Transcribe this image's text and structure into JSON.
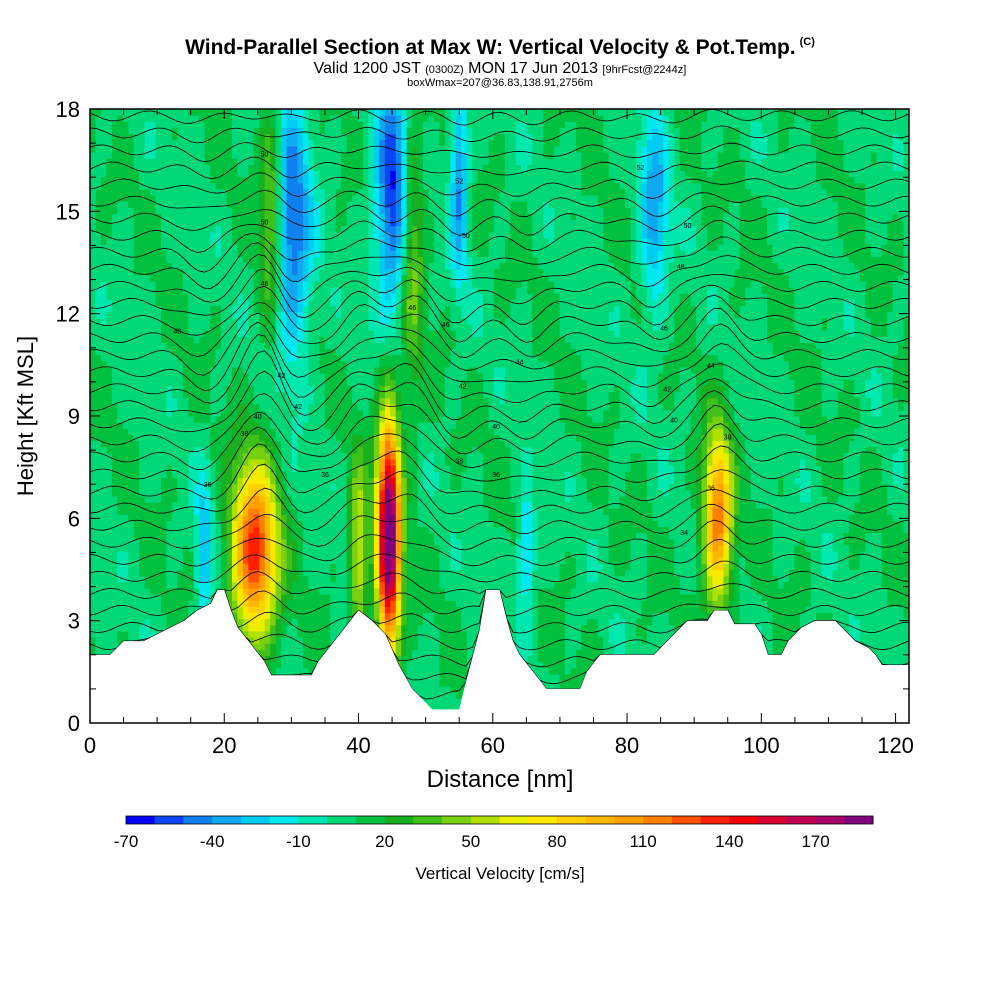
{
  "chart_data": {
    "type": "heatmap",
    "title": "Wind-Parallel Section at Max W: Vertical Velocity & Pot.Temp.",
    "title_mark": "(C)",
    "subtitle_valid": "Valid 1200 JST",
    "subtitle_utc": "(0300Z)",
    "subtitle_date": "MON 17 Jun 2013",
    "subtitle_fcst": "[9hrFcst@2244z]",
    "subtitle2": "boxWmax=207@36.83,138.91,2756m",
    "xlabel": "Distance [nm]",
    "ylabel": "Height [Kft MSL]",
    "xlim": [
      0,
      122
    ],
    "ylim": [
      0,
      18
    ],
    "xticks": [
      0,
      20,
      40,
      60,
      80,
      100,
      120
    ],
    "yticks": [
      0,
      3,
      6,
      9,
      12,
      15,
      18
    ],
    "colorbar": {
      "label": "Vertical Velocity [cm/s]",
      "tick_labels": [
        "-70",
        "-40",
        "-10",
        "20",
        "50",
        "80",
        "110",
        "140",
        "170"
      ],
      "tick_values": [
        -70,
        -40,
        -10,
        20,
        50,
        80,
        110,
        140,
        170
      ],
      "bins": [
        -70,
        -60,
        -50,
        -40,
        -30,
        -20,
        -10,
        0,
        10,
        20,
        30,
        40,
        50,
        60,
        70,
        80,
        90,
        100,
        110,
        120,
        130,
        140,
        150,
        160,
        170,
        180,
        190
      ],
      "colors": [
        "#0000f5",
        "#0a46f5",
        "#1080f0",
        "#10a8f0",
        "#00ccf0",
        "#00e8f0",
        "#00e8b0",
        "#00d878",
        "#00c040",
        "#18b020",
        "#40c018",
        "#78d010",
        "#b0e000",
        "#e8f000",
        "#ffe800",
        "#ffd000",
        "#ffb800",
        "#ffa000",
        "#ff8000",
        "#ff5000",
        "#ff2000",
        "#f00000",
        "#d80030",
        "#c00050",
        "#a80068",
        "#800080"
      ]
    },
    "terrain_kft": [
      [
        0,
        2.0
      ],
      [
        3,
        2.0
      ],
      [
        5,
        2.4
      ],
      [
        8,
        2.4
      ],
      [
        10,
        2.6
      ],
      [
        12,
        2.8
      ],
      [
        14,
        3.0
      ],
      [
        16,
        3.3
      ],
      [
        18,
        3.5
      ],
      [
        19,
        3.9
      ],
      [
        20,
        3.9
      ],
      [
        21,
        3.3
      ],
      [
        22,
        2.8
      ],
      [
        24,
        2.3
      ],
      [
        26,
        1.8
      ],
      [
        27,
        1.4
      ],
      [
        33,
        1.4
      ],
      [
        34,
        1.8
      ],
      [
        36,
        2.3
      ],
      [
        38,
        2.8
      ],
      [
        40,
        3.3
      ],
      [
        42,
        3.0
      ],
      [
        44,
        2.6
      ],
      [
        46,
        1.7
      ],
      [
        48,
        1.0
      ],
      [
        51,
        0.4
      ],
      [
        55,
        0.4
      ],
      [
        56,
        1.2
      ],
      [
        58,
        2.7
      ],
      [
        59,
        3.9
      ],
      [
        61,
        3.9
      ],
      [
        62,
        3.1
      ],
      [
        63,
        2.4
      ],
      [
        64,
        2.0
      ],
      [
        66,
        1.5
      ],
      [
        68,
        1.0
      ],
      [
        73,
        1.0
      ],
      [
        74,
        1.5
      ],
      [
        76,
        2.0
      ],
      [
        84,
        2.0
      ],
      [
        85,
        2.2
      ],
      [
        87,
        2.6
      ],
      [
        89,
        3.0
      ],
      [
        92,
        3.0
      ],
      [
        93,
        3.3
      ],
      [
        95,
        3.3
      ],
      [
        96,
        2.9
      ],
      [
        99,
        2.9
      ],
      [
        100,
        2.6
      ],
      [
        101,
        2.0
      ],
      [
        103,
        2.0
      ],
      [
        104,
        2.4
      ],
      [
        106,
        2.8
      ],
      [
        108,
        3.0
      ],
      [
        111,
        3.0
      ],
      [
        112,
        2.8
      ],
      [
        114,
        2.4
      ],
      [
        116,
        2.2
      ],
      [
        117,
        2.0
      ],
      [
        118,
        1.7
      ],
      [
        122,
        1.7
      ]
    ],
    "updrafts": [
      {
        "x": 24.5,
        "y": 5.0,
        "w": 8,
        "h": 6,
        "max": 130
      },
      {
        "x": 44.5,
        "y": 5.5,
        "w": 4,
        "h": 8,
        "max": 200
      },
      {
        "x": 93.5,
        "y": 6.0,
        "w": 5,
        "h": 6,
        "max": 110
      },
      {
        "x": 40.0,
        "y": 5.0,
        "w": 3,
        "h": 6,
        "max": 60
      },
      {
        "x": 27.0,
        "y": 15.0,
        "w": 4,
        "h": 8,
        "max": 50
      },
      {
        "x": 48.0,
        "y": 14.0,
        "w": 4,
        "h": 10,
        "max": 40
      }
    ],
    "downdrafts": [
      {
        "x": 30.0,
        "y": 14.5,
        "w": 7,
        "h": 9,
        "min": -60
      },
      {
        "x": 45.0,
        "y": 15.5,
        "w": 6,
        "h": 8,
        "min": -70
      },
      {
        "x": 55.0,
        "y": 16.0,
        "w": 3,
        "h": 7,
        "min": -50
      },
      {
        "x": 17.0,
        "y": 5.0,
        "w": 3,
        "h": 5,
        "min": -40
      },
      {
        "x": 65.0,
        "y": 5.0,
        "w": 3,
        "h": 4,
        "min": -40
      },
      {
        "x": 84.0,
        "y": 15.0,
        "w": 5,
        "h": 7,
        "min": -45
      }
    ],
    "theta_contour_labels": [
      {
        "x": 26,
        "y": 16.7,
        "label": "50"
      },
      {
        "x": 26,
        "y": 14.7,
        "label": "50"
      },
      {
        "x": 26,
        "y": 12.9,
        "label": "46"
      },
      {
        "x": 13,
        "y": 11.5,
        "label": "48"
      },
      {
        "x": 28.5,
        "y": 10.2,
        "label": "42"
      },
      {
        "x": 31,
        "y": 9.3,
        "label": "42"
      },
      {
        "x": 25,
        "y": 9.0,
        "label": "40"
      },
      {
        "x": 23,
        "y": 8.5,
        "label": "38"
      },
      {
        "x": 17.5,
        "y": 7.0,
        "label": "36"
      },
      {
        "x": 35,
        "y": 7.3,
        "label": "36"
      },
      {
        "x": 48,
        "y": 12.2,
        "label": "46"
      },
      {
        "x": 53,
        "y": 11.7,
        "label": "46"
      },
      {
        "x": 55,
        "y": 15.9,
        "label": "52"
      },
      {
        "x": 56,
        "y": 14.3,
        "label": "50"
      },
      {
        "x": 55.5,
        "y": 9.9,
        "label": "42"
      },
      {
        "x": 60.5,
        "y": 8.7,
        "label": "40"
      },
      {
        "x": 55,
        "y": 7.7,
        "label": "38"
      },
      {
        "x": 60.5,
        "y": 7.3,
        "label": "36"
      },
      {
        "x": 64,
        "y": 10.6,
        "label": "44"
      },
      {
        "x": 82,
        "y": 16.3,
        "label": "52"
      },
      {
        "x": 89,
        "y": 14.6,
        "label": "50"
      },
      {
        "x": 88,
        "y": 13.4,
        "label": "48"
      },
      {
        "x": 85.5,
        "y": 11.6,
        "label": "46"
      },
      {
        "x": 92.5,
        "y": 10.5,
        "label": "44"
      },
      {
        "x": 86,
        "y": 9.8,
        "label": "42"
      },
      {
        "x": 87,
        "y": 8.9,
        "label": "40"
      },
      {
        "x": 95,
        "y": 8.4,
        "label": "38"
      },
      {
        "x": 92.5,
        "y": 6.9,
        "label": "36"
      },
      {
        "x": 88.5,
        "y": 5.6,
        "label": "34"
      }
    ]
  }
}
